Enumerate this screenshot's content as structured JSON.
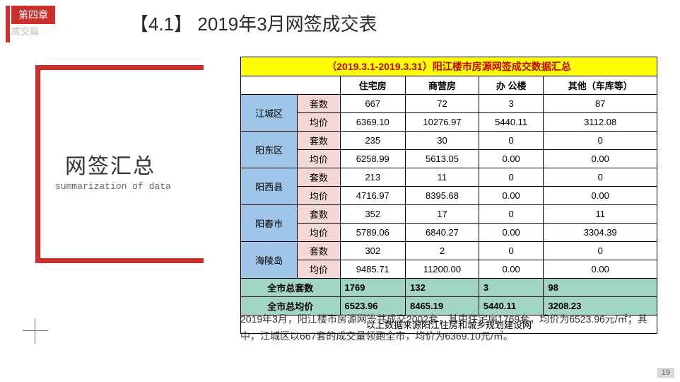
{
  "header": {
    "chapter": "第四章",
    "chapter_sub": "成交篇",
    "title": "【4.1】 2019年3月网签成交表"
  },
  "side": {
    "title": "网签汇总",
    "subtitle": "summarization of data",
    "accent_color": "#c9302c"
  },
  "table": {
    "banner": "（2019.3.1-2019.3.31）阳江楼市房源网签成交数据汇总",
    "columns": [
      "住宅房",
      "商营房",
      "办 公楼",
      "其他（车库等）"
    ],
    "metrics": [
      "套数",
      "均价"
    ],
    "districts": [
      {
        "name": "江城区",
        "count": [
          "667",
          "72",
          "3",
          "87"
        ],
        "price": [
          "6369.10",
          "10276.97",
          "5440.11",
          "3112.08"
        ]
      },
      {
        "name": "阳东区",
        "count": [
          "235",
          "30",
          "0",
          "0"
        ],
        "price": [
          "6258.99",
          "5613.05",
          "0.00",
          "0.00"
        ]
      },
      {
        "name": "阳西县",
        "count": [
          "213",
          "11",
          "0",
          "0"
        ],
        "price": [
          "4716.97",
          "8395.68",
          "0.00",
          "0.00"
        ]
      },
      {
        "name": "阳春市",
        "count": [
          "352",
          "17",
          "0",
          "11"
        ],
        "price": [
          "5789.06",
          "6840.27",
          "0.00",
          "3304.39"
        ]
      },
      {
        "name": "海陵岛",
        "count": [
          "302",
          "2",
          "0",
          "0"
        ],
        "price": [
          "9485.71",
          "11200.00",
          "0.00",
          "0.00"
        ]
      }
    ],
    "totals": {
      "count_label": "全市总套数",
      "count": [
        "1769",
        "132",
        "3",
        "98"
      ],
      "price_label": "全市总均价",
      "price": [
        "6523.96",
        "8465.19",
        "5440.11",
        "3208.23"
      ]
    },
    "source": "以上数据来源阳江住房和城乡规划建设网",
    "colors": {
      "banner_bg": "#ffff00",
      "banner_text": "#c00000",
      "district_bg": "#9fc5e8",
      "metric_bg": "#f4d7d7",
      "total_bg": "#a2d5c6",
      "border": "#000000"
    }
  },
  "paragraph": "2019年3月，阳江楼市房源网签共成交2002套，其中住宅房1769套，均价为6523.96元/㎡；其中，江城区以667套的成交量领跑全市，均价为6369.10元/㎡。",
  "page_number": "19"
}
